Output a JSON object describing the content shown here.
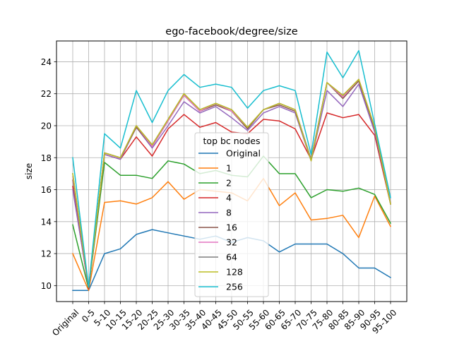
{
  "chart_data": {
    "type": "line",
    "title": "ego-facebook/degree/size",
    "xlabel": "",
    "ylabel": "size",
    "categories": [
      "Original",
      "0-5",
      "5-10",
      "10-15",
      "15-20",
      "20-25",
      "25-30",
      "30-35",
      "35-40",
      "40-45",
      "45-50",
      "50-55",
      "55-60",
      "60-65",
      "65-70",
      "70-75",
      "75-80",
      "80-85",
      "85-90",
      "90-95",
      "95-100"
    ],
    "ylim": [
      9.0,
      25.3
    ],
    "yticks": [
      10,
      12,
      14,
      16,
      18,
      20,
      22,
      24
    ],
    "grid": true,
    "legend": {
      "title": "top bc nodes",
      "placement": "center"
    },
    "series": [
      {
        "name": "Original",
        "color": "#1f77b4",
        "values": [
          9.7,
          9.7,
          12.0,
          12.3,
          13.2,
          13.5,
          13.3,
          13.1,
          12.9,
          13.1,
          12.7,
          13.0,
          12.8,
          12.1,
          12.6,
          12.6,
          12.6,
          12.0,
          11.1,
          11.1,
          10.5
        ]
      },
      {
        "name": "1",
        "color": "#ff7f0e",
        "values": [
          12.0,
          9.7,
          15.2,
          15.3,
          15.1,
          15.5,
          16.5,
          15.4,
          16.0,
          15.9,
          15.8,
          15.3,
          16.7,
          15.0,
          15.8,
          14.1,
          14.2,
          14.4,
          13.0,
          15.6,
          13.7
        ]
      },
      {
        "name": "2",
        "color": "#2ca02c",
        "values": [
          13.8,
          9.8,
          17.7,
          16.9,
          16.9,
          16.7,
          17.8,
          17.6,
          17.0,
          17.2,
          16.9,
          16.8,
          18.1,
          17.0,
          17.0,
          15.5,
          16.0,
          15.9,
          16.1,
          15.7,
          13.9
        ]
      },
      {
        "name": "4",
        "color": "#d62728",
        "values": [
          16.2,
          9.8,
          18.2,
          17.9,
          19.3,
          18.1,
          19.8,
          20.7,
          19.9,
          20.2,
          19.6,
          19.5,
          20.4,
          20.3,
          19.8,
          17.9,
          20.8,
          20.5,
          20.7,
          19.4,
          15.1
        ]
      },
      {
        "name": "8",
        "color": "#9467bd",
        "values": [
          16.0,
          9.9,
          18.2,
          17.9,
          19.9,
          18.6,
          20.0,
          21.5,
          20.8,
          21.2,
          20.5,
          19.7,
          20.8,
          21.2,
          20.8,
          17.8,
          22.2,
          21.2,
          22.6,
          19.6,
          15.2
        ]
      },
      {
        "name": "16",
        "color": "#8c564b",
        "values": [
          16.6,
          9.9,
          18.3,
          18.0,
          19.9,
          18.7,
          20.3,
          21.9,
          20.9,
          21.3,
          20.9,
          19.8,
          21.0,
          21.3,
          20.9,
          17.9,
          22.7,
          21.7,
          22.8,
          19.8,
          15.1
        ]
      },
      {
        "name": "32",
        "color": "#e377c2",
        "values": [
          16.8,
          9.9,
          18.3,
          18.0,
          20.0,
          18.7,
          20.3,
          21.9,
          20.9,
          21.4,
          20.9,
          19.9,
          21.0,
          21.4,
          21.0,
          17.9,
          22.7,
          21.8,
          22.9,
          19.9,
          15.1
        ]
      },
      {
        "name": "64",
        "color": "#7f7f7f",
        "values": [
          17.0,
          9.9,
          18.3,
          18.0,
          20.0,
          18.8,
          20.4,
          22.0,
          21.0,
          21.4,
          21.0,
          19.9,
          21.0,
          21.4,
          21.0,
          17.9,
          22.7,
          21.9,
          22.9,
          19.9,
          15.1
        ]
      },
      {
        "name": "128",
        "color": "#bcbd22",
        "values": [
          17.0,
          9.9,
          18.3,
          18.0,
          20.0,
          18.8,
          20.4,
          22.0,
          21.0,
          21.4,
          21.0,
          19.9,
          21.0,
          21.4,
          21.0,
          17.8,
          22.7,
          21.9,
          22.9,
          19.9,
          15.1
        ]
      },
      {
        "name": "256",
        "color": "#17becf",
        "values": [
          18.0,
          9.9,
          19.5,
          18.6,
          22.2,
          20.2,
          22.2,
          23.2,
          22.4,
          22.6,
          22.4,
          21.1,
          22.2,
          22.5,
          22.2,
          18.2,
          24.6,
          23.0,
          24.7,
          20.1,
          15.5
        ]
      }
    ]
  }
}
